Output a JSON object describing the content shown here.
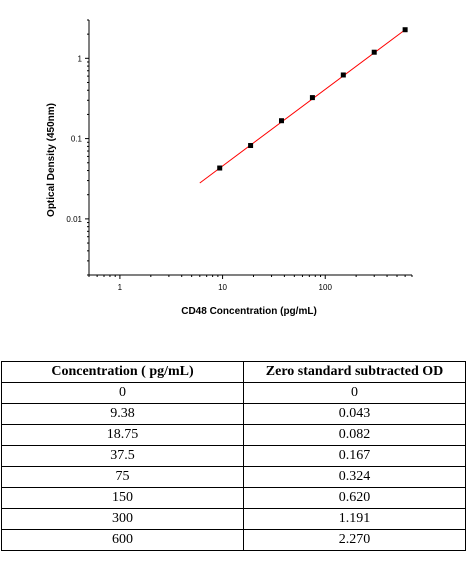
{
  "chart_data": {
    "type": "scatter",
    "xlabel": "CD48 Concentration (pg/mL)",
    "ylabel": "Optical Density (450nm)",
    "x_scale": "log",
    "y_scale": "log",
    "xlim": [
      0.5,
      700
    ],
    "ylim": [
      0.002,
      3
    ],
    "x_ticks": [
      1,
      10,
      100
    ],
    "x_tick_labels": [
      "1",
      "10",
      "100"
    ],
    "y_ticks": [
      0.01,
      0.1,
      1
    ],
    "y_tick_labels": [
      "0.01",
      "0.1",
      "1"
    ],
    "grid": false,
    "series": [
      {
        "x": [
          9.38,
          18.75,
          37.5,
          75,
          150,
          300,
          600
        ],
        "y": [
          0.043,
          0.082,
          0.167,
          0.324,
          0.62,
          1.191,
          2.27
        ],
        "marker_color": "#000000"
      }
    ],
    "fit_line": {
      "x": [
        6,
        600
      ],
      "y": [
        0.028,
        2.27
      ],
      "color": "#ff0000"
    }
  },
  "table": {
    "headers": [
      "Concentration ( pg/mL)",
      "Zero standard subtracted OD"
    ],
    "rows": [
      [
        "0",
        "0"
      ],
      [
        "9.38",
        "0.043"
      ],
      [
        "18.75",
        "0.082"
      ],
      [
        "37.5",
        "0.167"
      ],
      [
        "75",
        "0.324"
      ],
      [
        "150",
        "0.620"
      ],
      [
        "300",
        "1.191"
      ],
      [
        "600",
        "2.270"
      ]
    ]
  }
}
